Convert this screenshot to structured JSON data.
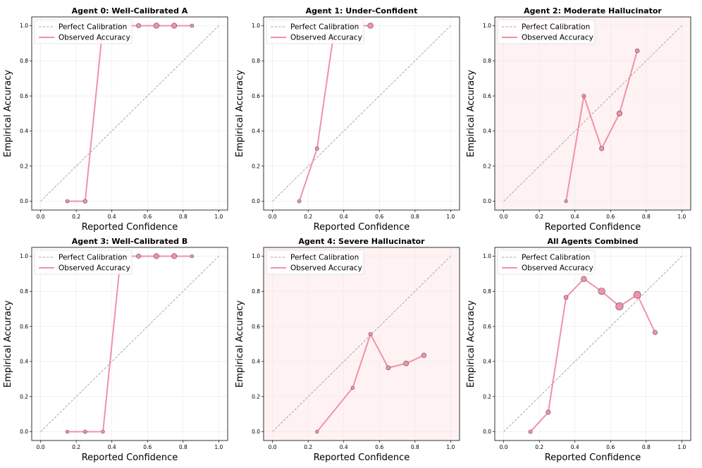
{
  "colors": {
    "observed": "#f291a8",
    "marker_edge": "#555555",
    "perfect": "#aaaaaa",
    "highlight_bg": "#fff2f2",
    "grid": "#ebebeb"
  },
  "chart_data": [
    {
      "type": "line",
      "title": "Agent 0: Well-Calibrated A",
      "xlabel": "Reported Confidence",
      "ylabel": "Empirical Accuracy",
      "xlim": [
        -0.05,
        1.05
      ],
      "ylim": [
        -0.05,
        1.05
      ],
      "xticks": [
        "0.0",
        "0.2",
        "0.4",
        "0.6",
        "0.8",
        "1.0"
      ],
      "yticks": [
        "0.0",
        "0.2",
        "0.4",
        "0.6",
        "0.8",
        "1.0"
      ],
      "grid": true,
      "highlighted": false,
      "legend": [
        "Perfect Calibration",
        "Observed Accuracy"
      ],
      "legend_position": "top-left",
      "series": [
        {
          "x": 0.15,
          "y": 0.0,
          "size": 1
        },
        {
          "x": 0.25,
          "y": 0.0,
          "size": 1.5
        },
        {
          "x": 0.35,
          "y": 1.0,
          "size": 2
        },
        {
          "x": 0.45,
          "y": 1.0,
          "size": 2
        },
        {
          "x": 0.55,
          "y": 1.0,
          "size": 2
        },
        {
          "x": 0.65,
          "y": 1.0,
          "size": 4
        },
        {
          "x": 0.75,
          "y": 1.0,
          "size": 3.5
        },
        {
          "x": 0.85,
          "y": 1.0,
          "size": 1
        }
      ]
    },
    {
      "type": "line",
      "title": "Agent 1: Under-Confident",
      "xlabel": "Reported Confidence",
      "ylabel": "Empirical Accuracy",
      "xlim": [
        -0.05,
        1.05
      ],
      "ylim": [
        -0.05,
        1.05
      ],
      "xticks": [
        "0.0",
        "0.2",
        "0.4",
        "0.6",
        "0.8",
        "1.0"
      ],
      "yticks": [
        "0.0",
        "0.2",
        "0.4",
        "0.6",
        "0.8",
        "1.0"
      ],
      "grid": true,
      "highlighted": false,
      "legend": [
        "Perfect Calibration",
        "Observed Accuracy"
      ],
      "legend_position": "top-left",
      "series": [
        {
          "x": 0.15,
          "y": 0.0,
          "size": 1
        },
        {
          "x": 0.25,
          "y": 0.3,
          "size": 1.2
        },
        {
          "x": 0.35,
          "y": 1.0,
          "size": 2
        },
        {
          "x": 0.45,
          "y": 1.0,
          "size": 2.5
        },
        {
          "x": 0.55,
          "y": 1.0,
          "size": 4
        }
      ]
    },
    {
      "type": "line",
      "title": "Agent 2: Moderate Hallucinator",
      "xlabel": "Reported Confidence",
      "ylabel": "Empirical Accuracy",
      "xlim": [
        -0.05,
        1.05
      ],
      "ylim": [
        -0.05,
        1.05
      ],
      "xticks": [
        "0.0",
        "0.2",
        "0.4",
        "0.6",
        "0.8",
        "1.0"
      ],
      "yticks": [
        "0.0",
        "0.2",
        "0.4",
        "0.6",
        "0.8",
        "1.0"
      ],
      "grid": true,
      "highlighted": true,
      "legend": [
        "Perfect Calibration",
        "Observed Accuracy"
      ],
      "legend_position": "top-left",
      "series": [
        {
          "x": 0.35,
          "y": 0.0,
          "size": 0.6
        },
        {
          "x": 0.45,
          "y": 0.6,
          "size": 1.2
        },
        {
          "x": 0.55,
          "y": 0.3,
          "size": 2.2
        },
        {
          "x": 0.65,
          "y": 0.5,
          "size": 3.5
        },
        {
          "x": 0.75,
          "y": 0.857,
          "size": 1.6
        }
      ]
    },
    {
      "type": "line",
      "title": "Agent 3: Well-Calibrated B",
      "xlabel": "Reported Confidence",
      "ylabel": "Empirical Accuracy",
      "xlim": [
        -0.05,
        1.05
      ],
      "ylim": [
        -0.05,
        1.05
      ],
      "xticks": [
        "0.0",
        "0.2",
        "0.4",
        "0.6",
        "0.8",
        "1.0"
      ],
      "yticks": [
        "0.0",
        "0.2",
        "0.4",
        "0.6",
        "0.8",
        "1.0"
      ],
      "grid": true,
      "highlighted": false,
      "legend": [
        "Perfect Calibration",
        "Observed Accuracy"
      ],
      "legend_position": "top-left",
      "series": [
        {
          "x": 0.15,
          "y": 0.0,
          "size": 0.7
        },
        {
          "x": 0.25,
          "y": 0.0,
          "size": 1.2
        },
        {
          "x": 0.35,
          "y": 0.0,
          "size": 0.7
        },
        {
          "x": 0.45,
          "y": 1.0,
          "size": 2
        },
        {
          "x": 0.55,
          "y": 1.0,
          "size": 2
        },
        {
          "x": 0.65,
          "y": 1.0,
          "size": 3.5
        },
        {
          "x": 0.75,
          "y": 1.0,
          "size": 3.5
        },
        {
          "x": 0.85,
          "y": 1.0,
          "size": 0.7
        }
      ]
    },
    {
      "type": "line",
      "title": "Agent 4: Severe Hallucinator",
      "xlabel": "Reported Confidence",
      "ylabel": "Empirical Accuracy",
      "xlim": [
        -0.05,
        1.05
      ],
      "ylim": [
        -0.05,
        1.05
      ],
      "xticks": [
        "0.0",
        "0.2",
        "0.4",
        "0.6",
        "0.8",
        "1.0"
      ],
      "yticks": [
        "0.0",
        "0.2",
        "0.4",
        "0.6",
        "0.8",
        "1.0"
      ],
      "grid": true,
      "highlighted": true,
      "legend": [
        "Perfect Calibration",
        "Observed Accuracy"
      ],
      "legend_position": "top-left",
      "series": [
        {
          "x": 0.25,
          "y": 0.0,
          "size": 0.6
        },
        {
          "x": 0.45,
          "y": 0.25,
          "size": 0.8
        },
        {
          "x": 0.55,
          "y": 0.556,
          "size": 1.2
        },
        {
          "x": 0.65,
          "y": 0.364,
          "size": 2
        },
        {
          "x": 0.75,
          "y": 0.389,
          "size": 3
        },
        {
          "x": 0.85,
          "y": 0.435,
          "size": 2.5
        }
      ]
    },
    {
      "type": "line",
      "title": "All Agents Combined",
      "xlabel": "Reported Confidence",
      "ylabel": "Empirical Accuracy",
      "xlim": [
        -0.05,
        1.05
      ],
      "ylim": [
        -0.05,
        1.05
      ],
      "xticks": [
        "0.0",
        "0.2",
        "0.4",
        "0.6",
        "0.8",
        "1.0"
      ],
      "yticks": [
        "0.0",
        "0.2",
        "0.4",
        "0.6",
        "0.8",
        "1.0"
      ],
      "grid": true,
      "highlighted": false,
      "legend": [
        "Perfect Calibration",
        "Observed Accuracy"
      ],
      "legend_position": "top-left",
      "series": [
        {
          "x": 0.15,
          "y": 0.0,
          "size": 1.2
        },
        {
          "x": 0.25,
          "y": 0.111,
          "size": 2.2
        },
        {
          "x": 0.35,
          "y": 0.765,
          "size": 1.8
        },
        {
          "x": 0.45,
          "y": 0.87,
          "size": 4
        },
        {
          "x": 0.55,
          "y": 0.8,
          "size": 7
        },
        {
          "x": 0.65,
          "y": 0.714,
          "size": 9
        },
        {
          "x": 0.75,
          "y": 0.78,
          "size": 8
        },
        {
          "x": 0.85,
          "y": 0.565,
          "size": 2.2
        }
      ]
    }
  ]
}
